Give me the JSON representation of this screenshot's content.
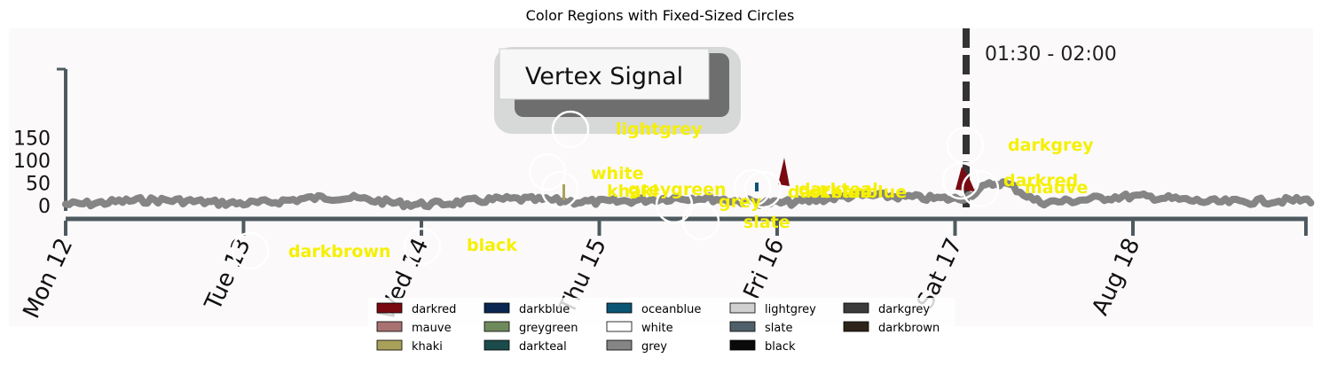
{
  "figure_title": "Color Regions with Fixed-Sized Circles",
  "image": {
    "header_text": "Vertex Signal",
    "range_label": "01:30 - 02:00",
    "y_ticks": [
      "0",
      "50",
      "100",
      "150"
    ],
    "x_ticks": [
      "Mon 12",
      "Tue 13",
      "Wed 14",
      "Thu 15",
      "Fri 16",
      "Sat 17",
      "Aug 18"
    ]
  },
  "chart_data": {
    "type": "line",
    "title": "",
    "xlabel": "",
    "ylabel": "",
    "ylim": [
      0,
      150
    ],
    "x": [
      0,
      0.5,
      1,
      1.5,
      2,
      2.5,
      3,
      3.5,
      4,
      4.5,
      5,
      5.25,
      5.5,
      6,
      6.5,
      7
    ],
    "values": [
      3,
      12,
      5,
      18,
      3,
      14,
      8,
      17,
      6,
      22,
      15,
      50,
      8,
      20,
      8,
      12
    ],
    "series": [
      {
        "name": "",
        "values": [
          3,
          12,
          5,
          18,
          3,
          14,
          8,
          17,
          6,
          22,
          15,
          50,
          8,
          20,
          8,
          12
        ]
      }
    ],
    "marker_at": "Sat 17",
    "colors": {
      "line": "#858585",
      "axis": "#4f5a60",
      "marker": "#333333",
      "labels": "#f5f000"
    }
  },
  "regions": [
    {
      "name": "lightgrey",
      "color": "#d0d0d0"
    },
    {
      "name": "white",
      "color": "#ffffff"
    },
    {
      "name": "khaki",
      "color": "#a9a15a"
    },
    {
      "name": "greygreen",
      "color": "#6e8a5c"
    },
    {
      "name": "grey",
      "color": "#858585"
    },
    {
      "name": "slate",
      "color": "#50606a"
    },
    {
      "name": "darkblue",
      "color": "#0b2650"
    },
    {
      "name": "darkteal",
      "color": "#1b4b4b"
    },
    {
      "name": "oceanblue",
      "color": "#0a5474"
    },
    {
      "name": "darkgrey",
      "color": "#3b3b3b"
    },
    {
      "name": "darkred",
      "color": "#7a0a12"
    },
    {
      "name": "mauve",
      "color": "#a97272"
    },
    {
      "name": "darkbrown",
      "color": "#2e2318"
    },
    {
      "name": "black",
      "color": "#0a0a0a"
    }
  ],
  "legend": [
    {
      "label": "darkred",
      "color": "#7a0a12"
    },
    {
      "label": "mauve",
      "color": "#a97272"
    },
    {
      "label": "khaki",
      "color": "#a9a15a"
    },
    {
      "label": "darkblue",
      "color": "#0b2650"
    },
    {
      "label": "greygreen",
      "color": "#6e8a5c"
    },
    {
      "label": "darkteal",
      "color": "#1b4b4b"
    },
    {
      "label": "oceanblue",
      "color": "#0a5474"
    },
    {
      "label": "white",
      "color": "#ffffff"
    },
    {
      "label": "grey",
      "color": "#858585"
    },
    {
      "label": "lightgrey",
      "color": "#d0d0d0"
    },
    {
      "label": "slate",
      "color": "#50606a"
    },
    {
      "label": "black",
      "color": "#0a0a0a"
    },
    {
      "label": "darkgrey",
      "color": "#3b3b3b"
    },
    {
      "label": "darkbrown",
      "color": "#2e2318"
    }
  ]
}
